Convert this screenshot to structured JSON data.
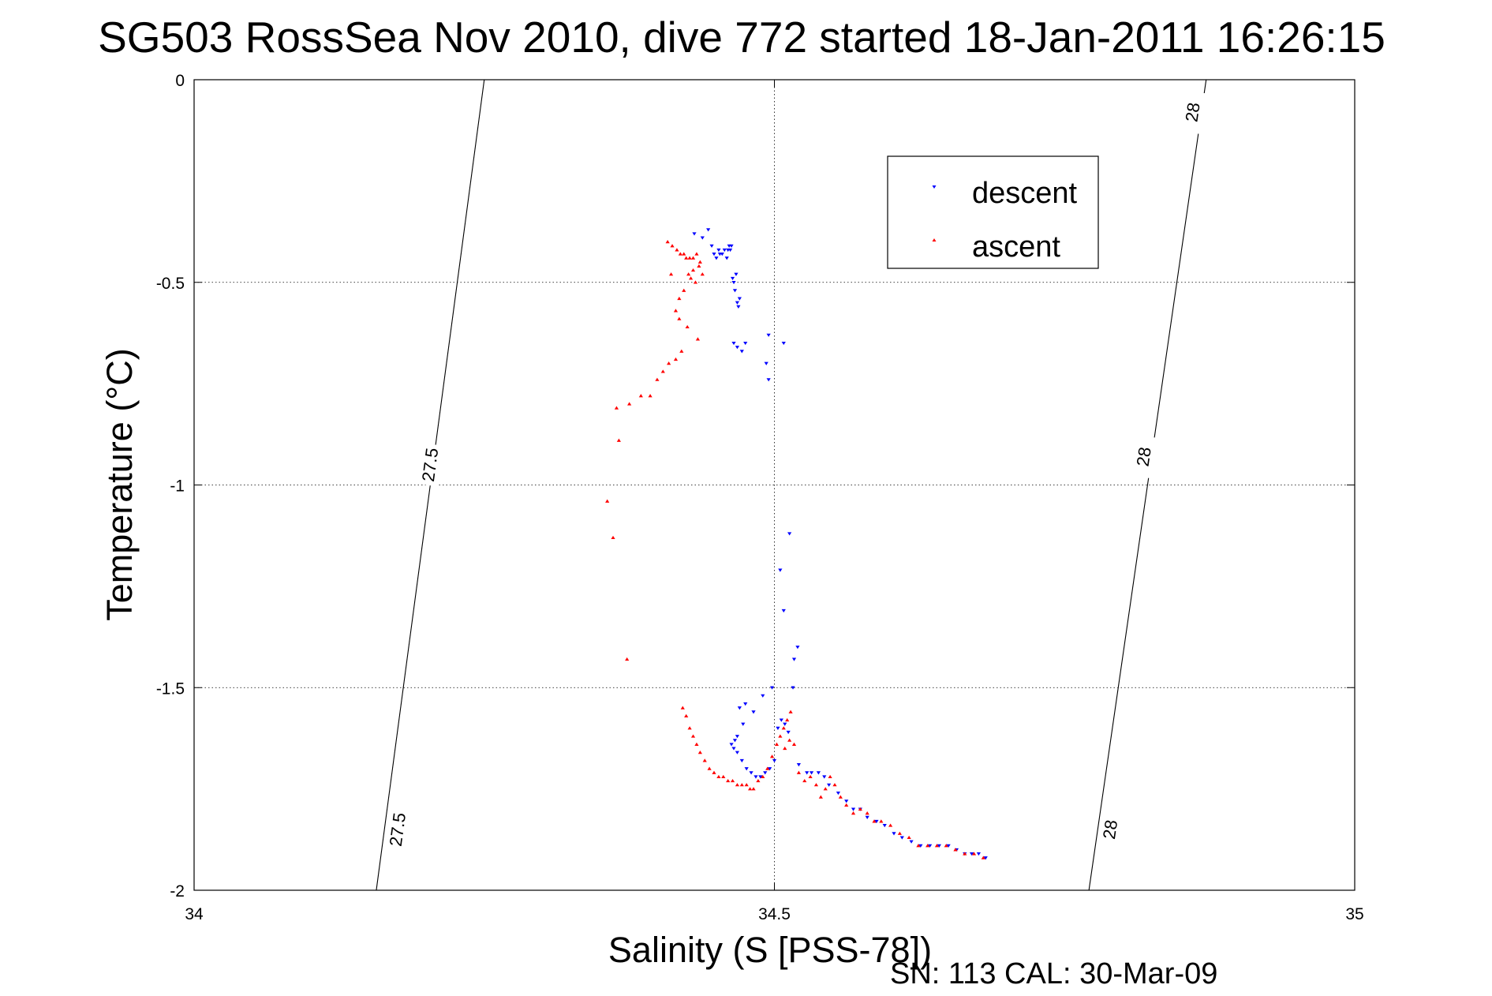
{
  "chart_data": {
    "type": "scatter",
    "title": "SG503 RossSea Nov 2010, dive 772 started 18-Jan-2011 16:26:15",
    "xlabel": "Salinity (S [PSS-78])",
    "ylabel": "Temperature (°C)",
    "xlim": [
      34,
      35
    ],
    "ylim": [
      -2,
      0
    ],
    "xticks": [
      {
        "value": 34,
        "label": "34"
      },
      {
        "value": 34.5,
        "label": "34.5"
      },
      {
        "value": 35,
        "label": "35"
      }
    ],
    "yticks": [
      {
        "value": 0,
        "label": "0"
      },
      {
        "value": -0.5,
        "label": "-0.5"
      },
      {
        "value": -1,
        "label": "-1"
      },
      {
        "value": -1.5,
        "label": "-1.5"
      },
      {
        "value": -2,
        "label": "-2"
      }
    ],
    "grid": true,
    "legend_position": "top-right",
    "series": [
      {
        "name": "descent",
        "marker": "triangle-down",
        "color": "#0000ff",
        "points": [
          [
            34.431,
            -0.38
          ],
          [
            34.438,
            -0.39
          ],
          [
            34.443,
            -0.37
          ],
          [
            34.446,
            -0.41
          ],
          [
            34.448,
            -0.43
          ],
          [
            34.45,
            -0.44
          ],
          [
            34.452,
            -0.42
          ],
          [
            34.453,
            -0.43
          ],
          [
            34.455,
            -0.43
          ],
          [
            34.457,
            -0.42
          ],
          [
            34.459,
            -0.44
          ],
          [
            34.46,
            -0.42
          ],
          [
            34.461,
            -0.41
          ],
          [
            34.462,
            -0.42
          ],
          [
            34.463,
            -0.41
          ],
          [
            34.464,
            -0.49
          ],
          [
            34.465,
            -0.5
          ],
          [
            34.466,
            -0.52
          ],
          [
            34.467,
            -0.48
          ],
          [
            34.468,
            -0.55
          ],
          [
            34.469,
            -0.56
          ],
          [
            34.47,
            -0.54
          ],
          [
            34.465,
            -0.65
          ],
          [
            34.468,
            -0.66
          ],
          [
            34.472,
            -0.67
          ],
          [
            34.475,
            -0.65
          ],
          [
            34.493,
            -0.7
          ],
          [
            34.495,
            -0.63
          ],
          [
            34.508,
            -0.65
          ],
          [
            34.495,
            -0.74
          ],
          [
            34.513,
            -1.12
          ],
          [
            34.505,
            -1.21
          ],
          [
            34.508,
            -1.31
          ],
          [
            34.52,
            -1.4
          ],
          [
            34.517,
            -1.43
          ],
          [
            34.516,
            -1.5
          ],
          [
            34.498,
            -1.5
          ],
          [
            34.49,
            -1.52
          ],
          [
            34.482,
            -1.56
          ],
          [
            34.475,
            -1.54
          ],
          [
            34.47,
            -1.55
          ],
          [
            34.473,
            -1.59
          ],
          [
            34.468,
            -1.62
          ],
          [
            34.466,
            -1.63
          ],
          [
            34.463,
            -1.64
          ],
          [
            34.465,
            -1.65
          ],
          [
            34.468,
            -1.66
          ],
          [
            34.472,
            -1.68
          ],
          [
            34.476,
            -1.7
          ],
          [
            34.48,
            -1.71
          ],
          [
            34.484,
            -1.72
          ],
          [
            34.488,
            -1.72
          ],
          [
            34.492,
            -1.71
          ],
          [
            34.496,
            -1.7
          ],
          [
            34.5,
            -1.68
          ],
          [
            34.503,
            -1.6
          ],
          [
            34.506,
            -1.58
          ],
          [
            34.509,
            -1.59
          ],
          [
            34.512,
            -1.61
          ],
          [
            34.521,
            -1.69
          ],
          [
            34.528,
            -1.71
          ],
          [
            34.532,
            -1.71
          ],
          [
            34.538,
            -1.71
          ],
          [
            34.543,
            -1.72
          ],
          [
            34.547,
            -1.74
          ],
          [
            34.555,
            -1.76
          ],
          [
            34.562,
            -1.78
          ],
          [
            34.568,
            -1.8
          ],
          [
            34.574,
            -1.8
          ],
          [
            34.58,
            -1.82
          ],
          [
            34.588,
            -1.83
          ],
          [
            34.595,
            -1.84
          ],
          [
            34.603,
            -1.86
          ],
          [
            34.61,
            -1.87
          ],
          [
            34.618,
            -1.88
          ],
          [
            34.626,
            -1.89
          ],
          [
            34.634,
            -1.89
          ],
          [
            34.642,
            -1.89
          ],
          [
            34.65,
            -1.89
          ],
          [
            34.657,
            -1.9
          ],
          [
            34.664,
            -1.91
          ],
          [
            34.67,
            -1.91
          ],
          [
            34.676,
            -1.91
          ],
          [
            34.682,
            -1.92
          ]
        ]
      },
      {
        "name": "ascent",
        "marker": "triangle-up",
        "color": "#ff0000",
        "points": [
          [
            34.408,
            -0.4
          ],
          [
            34.412,
            -0.41
          ],
          [
            34.416,
            -0.42
          ],
          [
            34.419,
            -0.43
          ],
          [
            34.422,
            -0.43
          ],
          [
            34.424,
            -0.44
          ],
          [
            34.427,
            -0.44
          ],
          [
            34.43,
            -0.44
          ],
          [
            34.433,
            -0.43
          ],
          [
            34.436,
            -0.45
          ],
          [
            34.438,
            -0.48
          ],
          [
            34.435,
            -0.46
          ],
          [
            34.43,
            -0.47
          ],
          [
            34.426,
            -0.48
          ],
          [
            34.428,
            -0.49
          ],
          [
            34.432,
            -0.5
          ],
          [
            34.422,
            -0.52
          ],
          [
            34.418,
            -0.54
          ],
          [
            34.415,
            -0.57
          ],
          [
            34.418,
            -0.59
          ],
          [
            34.411,
            -0.48
          ],
          [
            34.425,
            -0.61
          ],
          [
            34.434,
            -0.64
          ],
          [
            34.42,
            -0.67
          ],
          [
            34.415,
            -0.69
          ],
          [
            34.409,
            -0.7
          ],
          [
            34.404,
            -0.72
          ],
          [
            34.399,
            -0.74
          ],
          [
            34.385,
            -0.78
          ],
          [
            34.375,
            -0.8
          ],
          [
            34.393,
            -0.78
          ],
          [
            34.364,
            -0.81
          ],
          [
            34.366,
            -0.89
          ],
          [
            34.356,
            -1.04
          ],
          [
            34.361,
            -1.13
          ],
          [
            34.373,
            -1.43
          ],
          [
            34.421,
            -1.55
          ],
          [
            34.424,
            -1.57
          ],
          [
            34.427,
            -1.6
          ],
          [
            34.43,
            -1.62
          ],
          [
            34.433,
            -1.64
          ],
          [
            34.436,
            -1.66
          ],
          [
            34.44,
            -1.68
          ],
          [
            34.444,
            -1.7
          ],
          [
            34.448,
            -1.71
          ],
          [
            34.452,
            -1.72
          ],
          [
            34.456,
            -1.72
          ],
          [
            34.46,
            -1.73
          ],
          [
            34.464,
            -1.73
          ],
          [
            34.468,
            -1.74
          ],
          [
            34.472,
            -1.74
          ],
          [
            34.476,
            -1.74
          ],
          [
            34.479,
            -1.75
          ],
          [
            34.482,
            -1.75
          ],
          [
            34.486,
            -1.73
          ],
          [
            34.49,
            -1.72
          ],
          [
            34.494,
            -1.7
          ],
          [
            34.498,
            -1.67
          ],
          [
            34.502,
            -1.64
          ],
          [
            34.505,
            -1.62
          ],
          [
            34.508,
            -1.6
          ],
          [
            34.511,
            -1.58
          ],
          [
            34.514,
            -1.56
          ],
          [
            34.509,
            -1.65
          ],
          [
            34.513,
            -1.63
          ],
          [
            34.517,
            -1.64
          ],
          [
            34.521,
            -1.71
          ],
          [
            34.526,
            -1.73
          ],
          [
            34.531,
            -1.72
          ],
          [
            34.536,
            -1.74
          ],
          [
            34.54,
            -1.77
          ],
          [
            34.544,
            -1.75
          ],
          [
            34.548,
            -1.72
          ],
          [
            34.552,
            -1.74
          ],
          [
            34.557,
            -1.77
          ],
          [
            34.562,
            -1.79
          ],
          [
            34.568,
            -1.81
          ],
          [
            34.574,
            -1.8
          ],
          [
            34.58,
            -1.81
          ],
          [
            34.586,
            -1.83
          ],
          [
            34.592,
            -1.83
          ],
          [
            34.6,
            -1.84
          ],
          [
            34.608,
            -1.86
          ],
          [
            34.616,
            -1.87
          ],
          [
            34.624,
            -1.89
          ],
          [
            34.632,
            -1.89
          ],
          [
            34.64,
            -1.89
          ],
          [
            34.648,
            -1.89
          ],
          [
            34.656,
            -1.9
          ],
          [
            34.664,
            -1.91
          ],
          [
            34.672,
            -1.91
          ],
          [
            34.68,
            -1.92
          ]
        ]
      }
    ],
    "isopycnals": [
      {
        "label": "27.5",
        "points": [
          [
            34.157,
            -2.0
          ],
          [
            34.25,
            0.0
          ]
        ],
        "label_positions": [
          [
            34.175,
            -1.85
          ],
          [
            34.203,
            -0.95
          ]
        ]
      },
      {
        "label": "28",
        "points": [
          [
            34.771,
            -2.0
          ],
          [
            34.872,
            0.0
          ]
        ],
        "label_positions": [
          [
            34.789,
            -1.85
          ],
          [
            34.818,
            -0.93
          ],
          [
            34.86,
            -0.08
          ]
        ]
      }
    ]
  },
  "footer": "SN: 113  CAL: 30-Mar-09"
}
